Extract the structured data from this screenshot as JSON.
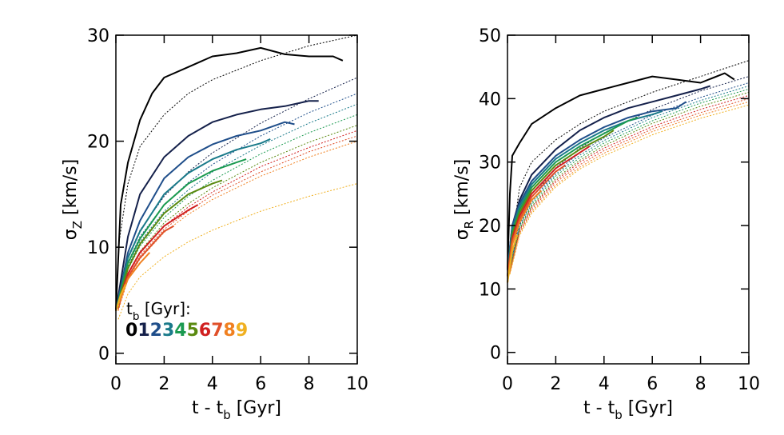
{
  "chart_data": [
    {
      "type": "line",
      "ylabel": [
        "σ",
        "Z",
        " [km/s]"
      ],
      "xlabel": [
        "t - t",
        "b",
        " [Gyr]"
      ],
      "legend_title": [
        "t",
        "b",
        " [Gyr]:"
      ],
      "xlim": [
        0,
        10
      ],
      "xticks": [
        0,
        2,
        4,
        6,
        8,
        10
      ],
      "ylim": [
        -1,
        30
      ],
      "yticks": [
        0,
        10,
        20,
        30
      ],
      "fit_x": [
        0.1,
        0.5,
        1,
        2,
        3,
        4,
        6,
        8,
        10
      ],
      "series": [
        {
          "name": "0",
          "color": "#000000",
          "x": [
            0,
            0.2,
            0.5,
            1,
            1.5,
            2,
            3,
            4,
            5,
            6,
            7,
            8,
            9,
            9.4
          ],
          "values": [
            4,
            14,
            18,
            22,
            24.5,
            26,
            27,
            28,
            28.3,
            28.8,
            28.2,
            28,
            28,
            27.6
          ],
          "fit_values": [
            10,
            16,
            19.5,
            22.5,
            24.5,
            25.8,
            27.6,
            29,
            30
          ]
        },
        {
          "name": "1",
          "color": "#14204a",
          "x": [
            0,
            0.5,
            1,
            2,
            3,
            4,
            5,
            6,
            7,
            8,
            8.4
          ],
          "values": [
            4,
            11,
            15,
            18.5,
            20.5,
            21.8,
            22.5,
            23,
            23.3,
            23.8,
            23.8
          ],
          "fit_values": [
            5.2,
            9.1,
            11.6,
            14.8,
            17.1,
            18.9,
            21.7,
            24,
            26
          ]
        },
        {
          "name": "2",
          "color": "#1f4e8a",
          "x": [
            0,
            0.5,
            1,
            2,
            3,
            4,
            5,
            6,
            7,
            7.4
          ],
          "values": [
            4,
            9.5,
            12.5,
            16.5,
            18.5,
            19.7,
            20.5,
            21,
            21.8,
            21.6
          ],
          "fit_values": [
            4.9,
            8.6,
            11,
            14,
            16.1,
            17.8,
            20.5,
            22.7,
            24.5
          ]
        },
        {
          "name": "3",
          "color": "#1a7a8a",
          "x": [
            0,
            0.5,
            1,
            2,
            3,
            4,
            5,
            6,
            6.4
          ],
          "values": [
            4,
            9,
            11.5,
            15,
            17,
            18.3,
            19.2,
            19.8,
            20.2
          ],
          "fit_values": [
            4.7,
            8.2,
            10.5,
            13.4,
            15.4,
            17.1,
            19.6,
            21.7,
            23.5
          ]
        },
        {
          "name": "4",
          "color": "#1a9a50",
          "x": [
            0,
            0.5,
            1,
            2,
            3,
            4,
            5,
            5.4
          ],
          "values": [
            4,
            8.5,
            10.8,
            14,
            16,
            17.2,
            18,
            18.3
          ],
          "fit_values": [
            4.5,
            7.9,
            10.1,
            12.8,
            14.8,
            16.3,
            18.8,
            20.8,
            22.5
          ]
        },
        {
          "name": "5",
          "color": "#5a8a10",
          "x": [
            0,
            0.5,
            1,
            2,
            3,
            4,
            4.4
          ],
          "values": [
            4,
            8,
            10.3,
            13.2,
            15,
            16,
            16.3
          ],
          "fit_values": [
            4.3,
            7.5,
            9.6,
            12.3,
            14.1,
            15.6,
            18,
            19.9,
            21.5
          ]
        },
        {
          "name": "6",
          "color": "#d02020",
          "x": [
            0,
            0.5,
            1,
            2,
            3,
            3.4
          ],
          "values": [
            4,
            7.5,
            9.5,
            12,
            13.5,
            14
          ],
          "fit_values": [
            4.2,
            7.4,
            9.4,
            12,
            13.8,
            15.2,
            17.6,
            19.4,
            21
          ]
        },
        {
          "name": "7",
          "color": "#e0502a",
          "x": [
            0,
            0.5,
            1,
            2,
            2.4
          ],
          "values": [
            4,
            7.2,
            9,
            11.5,
            12
          ],
          "fit_values": [
            4.1,
            7.2,
            9.2,
            11.7,
            13.4,
            14.9,
            17.1,
            19,
            20.5
          ]
        },
        {
          "name": "8",
          "color": "#f08020",
          "x": [
            0,
            0.5,
            1,
            1.4
          ],
          "values": [
            4,
            7,
            8.5,
            9.5
          ],
          "fit_values": [
            4,
            7,
            8.9,
            11.4,
            13.1,
            14.5,
            16.7,
            18.5,
            20
          ]
        },
        {
          "name": "9",
          "color": "#f0b020",
          "x": [
            0,
            0.2,
            0.4
          ],
          "values": [
            4,
            5.5,
            6.5
          ],
          "fit_values": [
            3.2,
            5.6,
            7.2,
            9.1,
            10.5,
            11.6,
            13.4,
            14.8,
            16
          ]
        }
      ]
    },
    {
      "type": "line",
      "ylabel": [
        "σ",
        "R",
        " [km/s]"
      ],
      "xlabel": [
        "t - t",
        "b",
        " [Gyr]"
      ],
      "xlim": [
        0,
        10
      ],
      "xticks": [
        0,
        2,
        4,
        6,
        8,
        10
      ],
      "ylim": [
        -1.8,
        50
      ],
      "yticks": [
        0,
        10,
        20,
        30,
        40,
        50
      ],
      "fit_x": [
        0.1,
        0.5,
        1,
        2,
        3,
        4,
        6,
        8,
        10
      ],
      "series": [
        {
          "color": "#000000",
          "x": [
            0,
            0.1,
            0.2,
            0.5,
            1,
            2,
            3,
            4,
            5,
            6,
            7,
            8,
            9,
            9.4
          ],
          "values": [
            13,
            25,
            31,
            33,
            36,
            38.5,
            40.5,
            41.5,
            42.5,
            43.5,
            43,
            42.5,
            44,
            43
          ],
          "fit_values": [
            15,
            26,
            30,
            33.5,
            36,
            38,
            41,
            43.5,
            46
          ]
        },
        {
          "color": "#14204a",
          "x": [
            0,
            0.2,
            0.5,
            1,
            2,
            3,
            4,
            5,
            6,
            7,
            8,
            8.4
          ],
          "values": [
            13,
            20,
            24,
            28,
            32,
            35,
            37,
            38.5,
            39.5,
            40.5,
            41.5,
            42
          ],
          "fit_values": [
            13.7,
            20.6,
            24.4,
            29.1,
            32.2,
            34.6,
            38.3,
            41.2,
            43.5
          ]
        },
        {
          "color": "#1f4e8a",
          "x": [
            0,
            0.2,
            0.5,
            1,
            2,
            3,
            4,
            5,
            6,
            7,
            7.4
          ],
          "values": [
            13,
            20,
            23.5,
            27,
            31,
            33.5,
            35.5,
            37,
            38,
            38.5,
            39.5
          ],
          "fit_values": [
            13.4,
            20.1,
            23.9,
            28.4,
            31.5,
            33.8,
            37.4,
            40.2,
            42.5
          ]
        },
        {
          "color": "#1a7a8a",
          "x": [
            0,
            0.2,
            0.5,
            1,
            2,
            3,
            4,
            5,
            6,
            6.4
          ],
          "values": [
            12,
            19.5,
            23,
            26.5,
            30.5,
            33,
            35,
            36.5,
            37.5,
            38
          ],
          "fit_values": [
            13.3,
            19.9,
            23.6,
            28.1,
            31.1,
            33.4,
            37,
            39.7,
            42
          ]
        },
        {
          "color": "#1a9a50",
          "x": [
            0,
            0.2,
            0.5,
            1,
            2,
            3,
            4,
            5,
            5.4
          ],
          "values": [
            12,
            19,
            22.5,
            26,
            30,
            32.5,
            34.5,
            36.5,
            37
          ],
          "fit_values": [
            13.1,
            19.6,
            23.3,
            27.8,
            30.7,
            33,
            36.5,
            39.3,
            41.5
          ]
        },
        {
          "color": "#5a8a10",
          "x": [
            0,
            0.2,
            0.5,
            1,
            2,
            3,
            4,
            4.4
          ],
          "values": [
            12,
            18.5,
            22,
            25.5,
            29.5,
            32,
            34,
            35
          ],
          "fit_values": [
            13,
            19.4,
            23,
            27.4,
            30.3,
            32.6,
            36.1,
            38.8,
            41
          ]
        },
        {
          "color": "#d02020",
          "x": [
            0,
            0.2,
            0.5,
            1,
            2,
            3,
            3.4
          ],
          "values": [
            12,
            18,
            21.5,
            25,
            29,
            31.5,
            32.5
          ],
          "fit_values": [
            12.8,
            19.2,
            22.8,
            27.1,
            30,
            32.2,
            35.6,
            38.3,
            40.5
          ]
        },
        {
          "color": "#e0502a",
          "x": [
            0,
            0.2,
            0.5,
            1,
            2,
            2.4
          ],
          "values": [
            12,
            17.5,
            21,
            24.5,
            28.5,
            29.5
          ],
          "fit_values": [
            12.6,
            18.9,
            22.5,
            26.8,
            29.6,
            31.8,
            35.2,
            37.8,
            40
          ]
        },
        {
          "color": "#f08020",
          "x": [
            0,
            0.2,
            0.5,
            1,
            1.4
          ],
          "values": [
            11,
            17,
            20.5,
            24,
            25.5
          ],
          "fit_values": [
            12.5,
            18.7,
            22.2,
            26.4,
            29.2,
            31.4,
            34.8,
            37.4,
            39.5
          ]
        },
        {
          "color": "#f0b020",
          "x": [
            0,
            0.2,
            0.4
          ],
          "values": [
            11,
            16,
            18.5
          ],
          "fit_values": [
            12.3,
            18.4,
            21.9,
            26.1,
            28.9,
            31,
            34.3,
            36.9,
            39
          ]
        }
      ]
    }
  ]
}
